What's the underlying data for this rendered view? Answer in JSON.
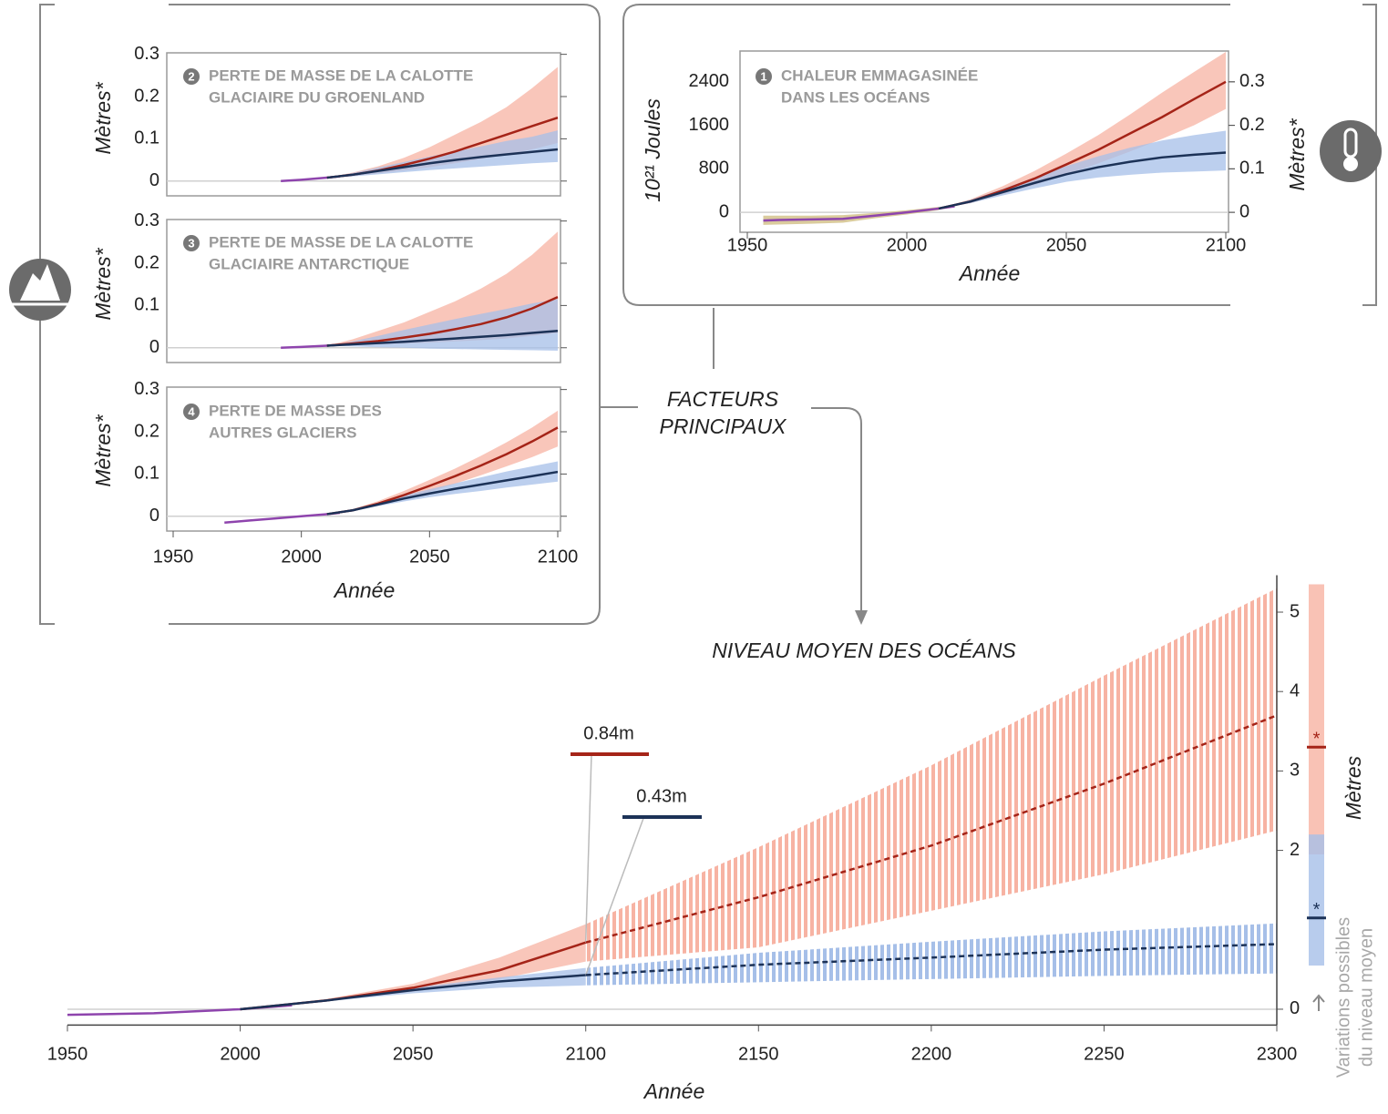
{
  "chart_data": [
    {
      "type": "line",
      "number": "1",
      "title": [
        "CHALEUR EMMAGASINÉE",
        "DANS LES OCÉANS"
      ],
      "xlabel": "Année",
      "ylabel": "10²¹ Joules",
      "y2label": "Mètres*",
      "xlim": [
        1950,
        2100
      ],
      "xticks": [
        1950,
        2000,
        2050,
        2100
      ],
      "ylim": [
        -400,
        3000
      ],
      "yticks": [
        0,
        800,
        1600,
        2400
      ],
      "y2lim": [
        -0.05,
        0.375
      ],
      "y2ticks": [
        0,
        0.1,
        0.2,
        0.3
      ],
      "zero_line": true,
      "bands": [
        {
          "color": "#cdb97c",
          "x": [
            1955,
            1970,
            1980,
            1990,
            2000,
            2010
          ],
          "low": [
            -230,
            -210,
            -190,
            -110,
            -40,
            40
          ],
          "high": [
            -60,
            -60,
            -50,
            -10,
            40,
            100
          ]
        },
        {
          "color": "#f7b3a3",
          "x": [
            2010,
            2020,
            2030,
            2040,
            2050,
            2060,
            2070,
            2080,
            2090,
            2100
          ],
          "low": [
            70,
            170,
            330,
            500,
            700,
            900,
            1120,
            1350,
            1600,
            1900
          ],
          "high": [
            70,
            240,
            480,
            760,
            1080,
            1420,
            1800,
            2200,
            2580,
            2950
          ]
        },
        {
          "color": "#a6bfe8",
          "x": [
            2010,
            2020,
            2030,
            2040,
            2050,
            2060,
            2070,
            2080,
            2090,
            2100
          ],
          "low": [
            70,
            170,
            310,
            440,
            560,
            640,
            690,
            730,
            750,
            770
          ],
          "high": [
            70,
            230,
            430,
            640,
            850,
            1030,
            1190,
            1320,
            1420,
            1500
          ]
        }
      ],
      "series": [
        {
          "color": "#8e44ad",
          "x": [
            1955,
            1960,
            1970,
            1980,
            1990,
            2000,
            2010,
            2015
          ],
          "values": [
            -150,
            -140,
            -130,
            -120,
            -60,
            0,
            70,
            110
          ]
        },
        {
          "color": "#a52418",
          "x": [
            2010,
            2020,
            2030,
            2040,
            2050,
            2060,
            2070,
            2080,
            2090,
            2100
          ],
          "values": [
            70,
            200,
            400,
            620,
            880,
            1150,
            1450,
            1750,
            2080,
            2400
          ]
        },
        {
          "color": "#1c3257",
          "x": [
            2010,
            2020,
            2030,
            2040,
            2050,
            2060,
            2070,
            2080,
            2090,
            2100
          ],
          "values": [
            70,
            200,
            370,
            540,
            700,
            830,
            930,
            1010,
            1060,
            1100
          ]
        }
      ]
    },
    {
      "type": "line",
      "number": "2",
      "title": [
        "PERTE DE MASSE DE LA CALOTTE",
        "GLACIAIRE DU GROENLAND"
      ],
      "ylabel": "Mètres*",
      "xlim": [
        1950,
        2100
      ],
      "ylim": [
        -0.035,
        0.31
      ],
      "yticks": [
        0,
        0.1,
        0.2,
        0.3
      ],
      "zero_line": true,
      "bands": [
        {
          "color": "#f7b3a3",
          "x": [
            2010,
            2020,
            2030,
            2040,
            2050,
            2060,
            2070,
            2080,
            2090,
            2100
          ],
          "low": [
            0.008,
            0.012,
            0.018,
            0.025,
            0.033,
            0.042,
            0.052,
            0.062,
            0.075,
            0.09
          ],
          "high": [
            0.008,
            0.02,
            0.035,
            0.055,
            0.08,
            0.11,
            0.14,
            0.175,
            0.22,
            0.27
          ]
        },
        {
          "color": "#a6bfe8",
          "x": [
            2010,
            2020,
            2030,
            2040,
            2050,
            2060,
            2070,
            2080,
            2090,
            2100
          ],
          "low": [
            0.008,
            0.011,
            0.016,
            0.021,
            0.026,
            0.03,
            0.034,
            0.038,
            0.042,
            0.045
          ],
          "high": [
            0.008,
            0.019,
            0.032,
            0.045,
            0.058,
            0.07,
            0.082,
            0.095,
            0.105,
            0.12
          ]
        }
      ],
      "series": [
        {
          "color": "#8e44ad",
          "x": [
            1992,
            2000,
            2010,
            2015
          ],
          "values": [
            0,
            0.003,
            0.008,
            0.011
          ]
        },
        {
          "color": "#a52418",
          "x": [
            2010,
            2020,
            2030,
            2040,
            2050,
            2060,
            2070,
            2080,
            2090,
            2100
          ],
          "values": [
            0.008,
            0.015,
            0.025,
            0.038,
            0.053,
            0.07,
            0.09,
            0.11,
            0.13,
            0.15
          ]
        },
        {
          "color": "#1c3257",
          "x": [
            2010,
            2020,
            2030,
            2040,
            2050,
            2060,
            2070,
            2080,
            2090,
            2100
          ],
          "values": [
            0.008,
            0.015,
            0.024,
            0.033,
            0.042,
            0.05,
            0.057,
            0.063,
            0.069,
            0.075
          ]
        }
      ]
    },
    {
      "type": "line",
      "number": "3",
      "title": [
        "PERTE DE MASSE DE LA CALOTTE",
        "GLACIAIRE ANTARCTIQUE"
      ],
      "ylabel": "Mètres*",
      "xlim": [
        1950,
        2100
      ],
      "ylim": [
        -0.035,
        0.31
      ],
      "yticks": [
        0,
        0.1,
        0.2,
        0.3
      ],
      "zero_line": true,
      "bands": [
        {
          "color": "#f7b3a3",
          "x": [
            2010,
            2020,
            2030,
            2040,
            2050,
            2060,
            2070,
            2080,
            2090,
            2100
          ],
          "low": [
            0.005,
            0.006,
            0.008,
            0.01,
            0.012,
            0.015,
            0.018,
            0.022,
            0.028,
            0.035
          ],
          "high": [
            0.005,
            0.02,
            0.04,
            0.06,
            0.085,
            0.11,
            0.14,
            0.175,
            0.22,
            0.275
          ]
        },
        {
          "color": "#a6bfe8",
          "x": [
            2010,
            2020,
            2030,
            2040,
            2050,
            2060,
            2070,
            2080,
            2090,
            2100
          ],
          "low": [
            0.005,
            0.003,
            0.001,
            0,
            -0.002,
            -0.003,
            -0.004,
            -0.005,
            -0.006,
            -0.007
          ],
          "high": [
            0.005,
            0.015,
            0.028,
            0.042,
            0.055,
            0.068,
            0.08,
            0.092,
            0.105,
            0.115
          ]
        }
      ],
      "series": [
        {
          "color": "#8e44ad",
          "x": [
            1992,
            2000,
            2010,
            2015
          ],
          "values": [
            0,
            0.002,
            0.005,
            0.007
          ]
        },
        {
          "color": "#a52418",
          "x": [
            2010,
            2020,
            2030,
            2040,
            2050,
            2060,
            2070,
            2080,
            2090,
            2100
          ],
          "values": [
            0.005,
            0.01,
            0.016,
            0.024,
            0.033,
            0.044,
            0.056,
            0.072,
            0.093,
            0.12
          ]
        },
        {
          "color": "#1c3257",
          "x": [
            2010,
            2020,
            2030,
            2040,
            2050,
            2060,
            2070,
            2080,
            2090,
            2100
          ],
          "values": [
            0.005,
            0.008,
            0.011,
            0.014,
            0.018,
            0.022,
            0.026,
            0.03,
            0.035,
            0.04
          ]
        }
      ]
    },
    {
      "type": "line",
      "number": "4",
      "title": [
        "PERTE DE MASSE DES",
        "AUTRES GLACIERS"
      ],
      "xlabel": "Année",
      "ylabel": "Mètres*",
      "xlim": [
        1950,
        2100
      ],
      "xticks": [
        1950,
        2000,
        2050,
        2100
      ],
      "ylim": [
        -0.035,
        0.31
      ],
      "yticks": [
        0,
        0.1,
        0.2,
        0.3
      ],
      "zero_line": true,
      "bands": [
        {
          "color": "#f7b3a3",
          "x": [
            2010,
            2020,
            2030,
            2040,
            2050,
            2060,
            2070,
            2080,
            2090,
            2100
          ],
          "low": [
            0.005,
            0.012,
            0.025,
            0.041,
            0.058,
            0.077,
            0.097,
            0.118,
            0.14,
            0.165
          ],
          "high": [
            0.005,
            0.017,
            0.036,
            0.06,
            0.086,
            0.113,
            0.143,
            0.175,
            0.21,
            0.25
          ]
        },
        {
          "color": "#a6bfe8",
          "x": [
            2010,
            2020,
            2030,
            2040,
            2050,
            2060,
            2070,
            2080,
            2090,
            2100
          ],
          "low": [
            0.005,
            0.012,
            0.024,
            0.035,
            0.045,
            0.053,
            0.06,
            0.068,
            0.075,
            0.082
          ],
          "high": [
            0.005,
            0.016,
            0.032,
            0.049,
            0.064,
            0.078,
            0.092,
            0.106,
            0.118,
            0.13
          ]
        }
      ],
      "series": [
        {
          "color": "#8e44ad",
          "x": [
            1970,
            1980,
            1990,
            2000,
            2010,
            2015
          ],
          "values": [
            -0.015,
            -0.01,
            -0.005,
            0,
            0.005,
            0.008
          ]
        },
        {
          "color": "#a52418",
          "x": [
            2010,
            2020,
            2030,
            2040,
            2050,
            2060,
            2070,
            2080,
            2090,
            2100
          ],
          "values": [
            0.005,
            0.014,
            0.03,
            0.05,
            0.072,
            0.095,
            0.12,
            0.147,
            0.177,
            0.21
          ]
        },
        {
          "color": "#1c3257",
          "x": [
            2010,
            2020,
            2030,
            2040,
            2050,
            2060,
            2070,
            2080,
            2090,
            2100
          ],
          "values": [
            0.005,
            0.014,
            0.028,
            0.042,
            0.054,
            0.065,
            0.075,
            0.085,
            0.095,
            0.105
          ]
        }
      ]
    },
    {
      "type": "line",
      "title": "NIVEAU MOYEN DES OCÉANS",
      "xlabel": "Année",
      "ylabel": "Mètres",
      "xlim": [
        1950,
        2300
      ],
      "xticks": [
        1950,
        2000,
        2050,
        2100,
        2150,
        2200,
        2250,
        2300
      ],
      "ylim": [
        -0.2,
        5.35
      ],
      "yticks": [
        0,
        2,
        3,
        4,
        5
      ],
      "zero_line": true,
      "bands": [
        {
          "color": "#f7b3a3",
          "x": [
            2000,
            2025,
            2050,
            2075,
            2100
          ],
          "low": [
            0,
            0.1,
            0.22,
            0.38,
            0.6
          ],
          "high": [
            0,
            0.13,
            0.32,
            0.65,
            1.07
          ]
        },
        {
          "color": "#f7b3a3",
          "style": "hatched",
          "x": [
            2100,
            2150,
            2200,
            2250,
            2300
          ],
          "low": [
            0.6,
            0.78,
            1.24,
            1.7,
            2.25
          ],
          "high": [
            1.07,
            2.04,
            3.07,
            4.2,
            5.3
          ]
        },
        {
          "color": "#a6bfe8",
          "x": [
            2000,
            2025,
            2050,
            2075,
            2100
          ],
          "low": [
            0,
            0.1,
            0.2,
            0.27,
            0.3
          ],
          "high": [
            0,
            0.12,
            0.27,
            0.4,
            0.52
          ]
        },
        {
          "color": "#a6bfe8",
          "style": "hatched",
          "x": [
            2100,
            2150,
            2200,
            2250,
            2300
          ],
          "low": [
            0.3,
            0.34,
            0.38,
            0.42,
            0.45
          ],
          "high": [
            0.52,
            0.71,
            0.85,
            0.98,
            1.08
          ]
        }
      ],
      "series": [
        {
          "color": "#8e44ad",
          "x": [
            1950,
            1975,
            2000,
            2015
          ],
          "values": [
            -0.07,
            -0.05,
            0,
            0.05
          ]
        },
        {
          "color": "#a52418",
          "x": [
            2000,
            2025,
            2050,
            2075,
            2100
          ],
          "values": [
            0,
            0.11,
            0.27,
            0.49,
            0.84
          ],
          "value_labels": [
            null,
            null,
            null,
            null,
            "0.84m"
          ]
        },
        {
          "color": "#a52418",
          "style": "dashed",
          "x": [
            2100,
            2150,
            2200,
            2250,
            2300
          ],
          "values": [
            0.84,
            1.41,
            2.06,
            2.84,
            3.7
          ]
        },
        {
          "color": "#1c3257",
          "x": [
            2000,
            2025,
            2050,
            2075,
            2100
          ],
          "values": [
            0,
            0.11,
            0.24,
            0.35,
            0.43
          ],
          "value_labels": [
            null,
            null,
            null,
            null,
            "0.43m"
          ]
        },
        {
          "color": "#1c3257",
          "style": "dashed",
          "x": [
            2100,
            2150,
            2200,
            2250,
            2300
          ],
          "values": [
            0.43,
            0.56,
            0.65,
            0.75,
            0.82
          ]
        }
      ],
      "ranges": [
        {
          "color": "#f7b3a3",
          "low": 1.95,
          "high": 5.35,
          "median": 3.3,
          "median_color": "#a52418",
          "median_mark": "*"
        },
        {
          "color": "#a6bfe8",
          "low": 0.55,
          "high": 2.2,
          "median": 1.15,
          "median_color": "#1c3257",
          "median_mark": "*"
        }
      ],
      "range_note": [
        "Variations possibles",
        "du niveau moyen"
      ]
    }
  ],
  "connector_label": [
    "FACTEURS",
    "PRINCIPAUX"
  ]
}
